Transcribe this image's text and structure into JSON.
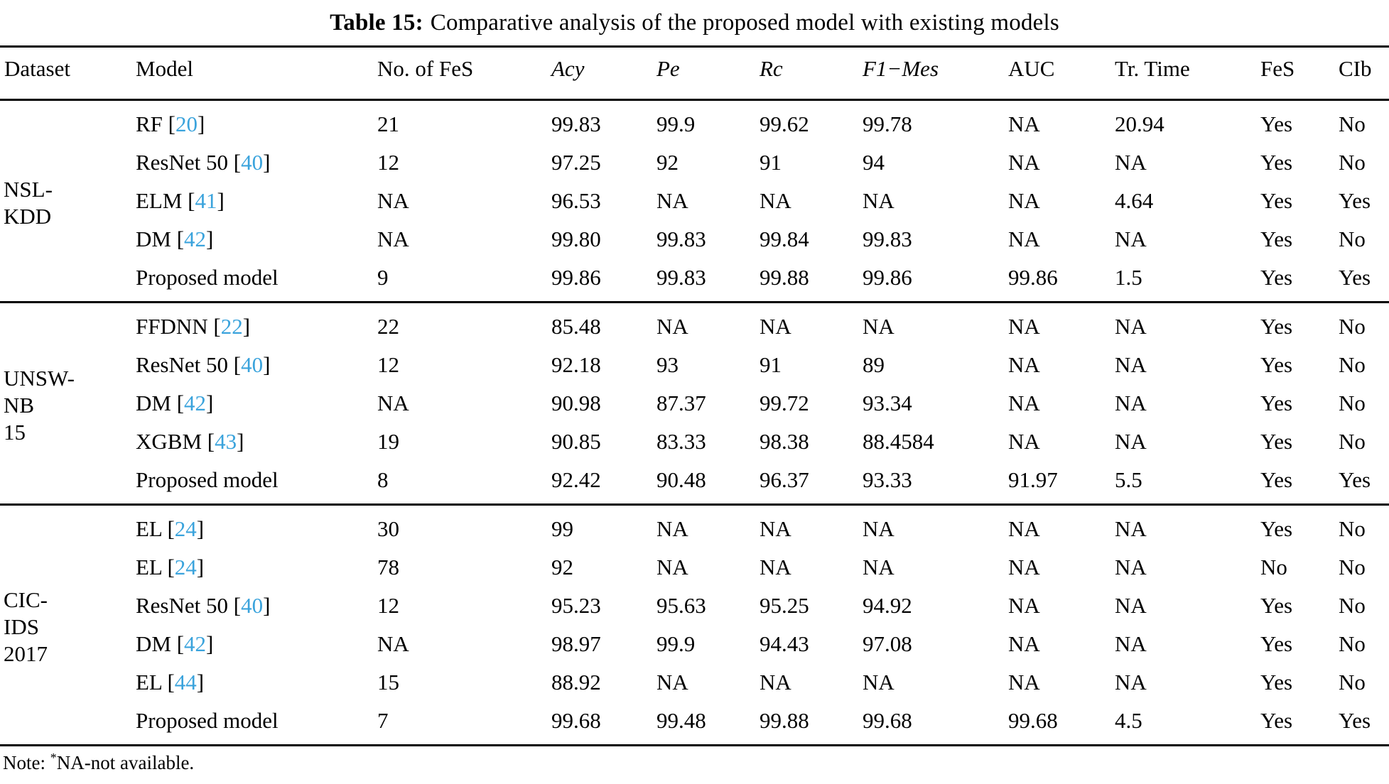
{
  "title": {
    "prefix": "Table 15:",
    "text": "Comparative analysis of the proposed model with existing models"
  },
  "columns": [
    {
      "label": "Dataset",
      "italic": false
    },
    {
      "label": "Model",
      "italic": false
    },
    {
      "label": "No. of FeS",
      "italic": false
    },
    {
      "label": "Acy",
      "italic": true
    },
    {
      "label": "Pe",
      "italic": true
    },
    {
      "label": "Rc",
      "italic": true
    },
    {
      "label": "F1−Mes",
      "italic": true
    },
    {
      "label": "AUC",
      "italic": false
    },
    {
      "label": "Tr. Time",
      "italic": false
    },
    {
      "label": "FeS",
      "italic": false
    },
    {
      "label": "CIb",
      "italic": false
    }
  ],
  "citation_color": "#3AA3DC",
  "groups": [
    {
      "dataset": "NSL-KDD",
      "dataset_lines": [
        "NSL-",
        "KDD"
      ],
      "rows": [
        {
          "model": "RF",
          "ref": "20",
          "values": [
            "21",
            "99.83",
            "99.9",
            "99.62",
            "99.78",
            "NA",
            "20.94",
            "Yes",
            "No"
          ]
        },
        {
          "model": "ResNet 50",
          "ref": "40",
          "values": [
            "12",
            "97.25",
            "92",
            "91",
            "94",
            "NA",
            "NA",
            "Yes",
            "No"
          ]
        },
        {
          "model": "ELM",
          "ref": "41",
          "values": [
            "NA",
            "96.53",
            "NA",
            "NA",
            "NA",
            "NA",
            "4.64",
            "Yes",
            "Yes"
          ]
        },
        {
          "model": "DM",
          "ref": "42",
          "values": [
            "NA",
            "99.80",
            "99.83",
            "99.84",
            "99.83",
            "NA",
            "NA",
            "Yes",
            "No"
          ]
        },
        {
          "model": "Proposed model",
          "ref": null,
          "values": [
            "9",
            "99.86",
            "99.83",
            "99.88",
            "99.86",
            "99.86",
            "1.5",
            "Yes",
            "Yes"
          ]
        }
      ]
    },
    {
      "dataset": "UNSW-NB 15",
      "dataset_lines": [
        "UNSW-",
        "NB",
        "15"
      ],
      "rows": [
        {
          "model": "FFDNN",
          "ref": "22",
          "values": [
            "22",
            "85.48",
            "NA",
            "NA",
            "NA",
            "NA",
            "NA",
            "Yes",
            "No"
          ]
        },
        {
          "model": "ResNet 50",
          "ref": "40",
          "values": [
            "12",
            "92.18",
            "93",
            "91",
            "89",
            "NA",
            "NA",
            "Yes",
            "No"
          ]
        },
        {
          "model": "DM",
          "ref": "42",
          "values": [
            "NA",
            "90.98",
            "87.37",
            "99.72",
            "93.34",
            "NA",
            "NA",
            "Yes",
            "No"
          ]
        },
        {
          "model": "XGBM",
          "ref": "43",
          "values": [
            "19",
            "90.85",
            "83.33",
            "98.38",
            "88.4584",
            "NA",
            "NA",
            "Yes",
            "No"
          ]
        },
        {
          "model": "Proposed model",
          "ref": null,
          "values": [
            "8",
            "92.42",
            "90.48",
            "96.37",
            "93.33",
            "91.97",
            "5.5",
            "Yes",
            "Yes"
          ]
        }
      ]
    },
    {
      "dataset": "CIC-IDS 2017",
      "dataset_lines": [
        "CIC-",
        "IDS",
        "2017"
      ],
      "rows": [
        {
          "model": "EL",
          "ref": "24",
          "values": [
            "30",
            "99",
            "NA",
            "NA",
            "NA",
            "NA",
            "NA",
            "Yes",
            "No"
          ]
        },
        {
          "model": "EL",
          "ref": "24",
          "values": [
            "78",
            "92",
            "NA",
            "NA",
            "NA",
            "NA",
            "NA",
            "No",
            "No"
          ]
        },
        {
          "model": "ResNet 50",
          "ref": "40",
          "values": [
            "12",
            "95.23",
            "95.63",
            "95.25",
            "94.92",
            "NA",
            "NA",
            "Yes",
            "No"
          ]
        },
        {
          "model": "DM",
          "ref": "42",
          "values": [
            "NA",
            "98.97",
            "99.9",
            "94.43",
            "97.08",
            "NA",
            "NA",
            "Yes",
            "No"
          ]
        },
        {
          "model": "EL",
          "ref": "44",
          "values": [
            "15",
            "88.92",
            "NA",
            "NA",
            "NA",
            "NA",
            "NA",
            "Yes",
            "No"
          ]
        },
        {
          "model": "Proposed model",
          "ref": null,
          "values": [
            "7",
            "99.68",
            "99.48",
            "99.88",
            "99.68",
            "99.68",
            "4.5",
            "Yes",
            "Yes"
          ]
        }
      ]
    }
  ],
  "note": {
    "prefix": "Note: ",
    "star": "*",
    "text": "NA-not available."
  }
}
